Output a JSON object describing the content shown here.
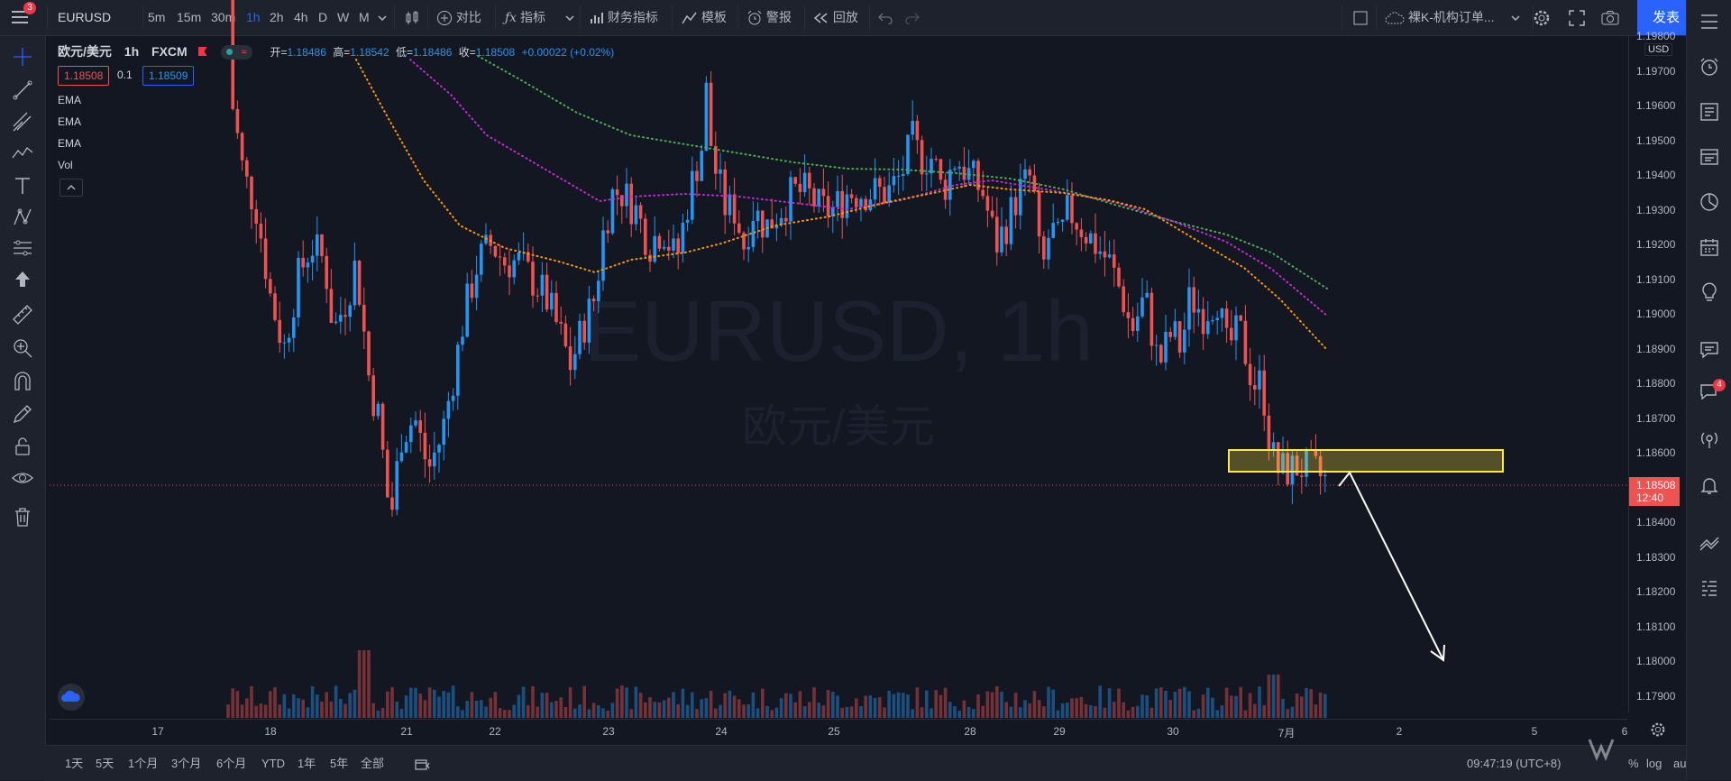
{
  "topbar": {
    "notif_count": "3",
    "symbol": "EURUSD",
    "intervals": [
      "5m",
      "15m",
      "30m",
      "1h",
      "2h",
      "4h",
      "D",
      "W",
      "M"
    ],
    "active_interval": "1h",
    "compare": "对比",
    "indicators": "指标",
    "financials": "财务指标",
    "templates": "模板",
    "alerts": "警报",
    "replay": "回放",
    "layout_name": "裸K-机构订单...",
    "publish": "发表"
  },
  "legend": {
    "name": "欧元/美元",
    "interval": "1h",
    "exchange": "FXCM",
    "open_label": "开=",
    "open": "1.18486",
    "high_label": "高=",
    "high": "1.18542",
    "low_label": "低=",
    "low": "1.18486",
    "close_label": "收=",
    "close": "1.18508",
    "change": "+0.00022 (+0.02%)",
    "sell_price": "1.18508",
    "spread": "0.1",
    "buy_price": "1.18509",
    "indicators": [
      "EMA",
      "EMA",
      "EMA",
      "Vol"
    ]
  },
  "watermark": {
    "line1": "EURUSD, 1h",
    "line2": "欧元/美元"
  },
  "price_axis": {
    "currency": "USD",
    "labels": [
      "1.19800",
      "1.19700",
      "1.19600",
      "1.19500",
      "1.19400",
      "1.19300",
      "1.19200",
      "1.19100",
      "1.19000",
      "1.18900",
      "1.18800",
      "1.18700",
      "1.18600",
      "1.18500",
      "1.18400",
      "1.18300",
      "1.18200",
      "1.18100",
      "1.18000",
      "1.17900"
    ],
    "current_price": "1.18508",
    "countdown": "12:40"
  },
  "time_axis": {
    "labels": [
      "17",
      "18",
      "21",
      "22",
      "23",
      "24",
      "25",
      "28",
      "29",
      "30",
      "7月",
      "2",
      "5",
      "6"
    ]
  },
  "bottombar": {
    "ranges": [
      "1天",
      "5天",
      "1个月",
      "3个月",
      "6个月",
      "YTD",
      "1年",
      "5年",
      "全部"
    ],
    "clock": "09:47:19 (UTC+8)",
    "pct": "%",
    "log": "log",
    "auto": "auto"
  },
  "rightbar": {
    "badge": "4"
  },
  "colors": {
    "up": "#2196f3",
    "down": "#ef5350",
    "ema_fast": "#ff9800",
    "ema_mid": "#c72ad6",
    "ema_slow": "#4caf50",
    "zone": "#ffeb3b",
    "accent": "#2962ff"
  }
}
